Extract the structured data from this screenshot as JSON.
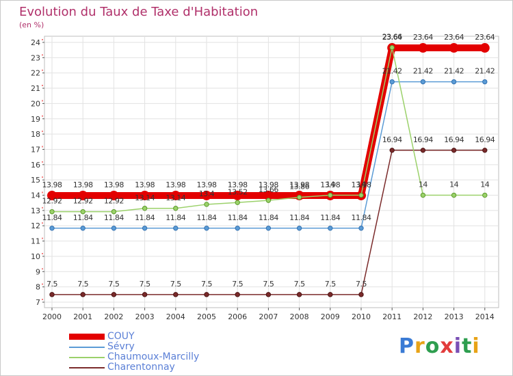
{
  "title": "Evolution du Taux de Taxe d'Habitation",
  "subtitle": "(en %)",
  "logo": {
    "text": "Proxiti",
    "colors": [
      "#3a7bd5",
      "#e8a317",
      "#2e9e4f",
      "#e23c3c",
      "#7a4fb5",
      "#2e9e4f",
      "#e8a317"
    ]
  },
  "chart_data": {
    "type": "line",
    "title": "Evolution du Taux de Taxe d'Habitation",
    "ylabel": "(en %)",
    "xlabel": "",
    "ylim": [
      7,
      24
    ],
    "yticks": [
      7,
      8,
      9,
      10,
      11,
      12,
      13,
      14,
      15,
      16,
      17,
      18,
      19,
      20,
      21,
      22,
      23,
      24
    ],
    "x": [
      "2000",
      "2001",
      "2002",
      "2003",
      "2004",
      "2005",
      "2006",
      "2007",
      "2008",
      "2009",
      "2010",
      "2011",
      "2012",
      "2013",
      "2014"
    ],
    "series": [
      {
        "name": "COUY",
        "color": "#e30000",
        "width": 10,
        "values": [
          13.98,
          13.98,
          13.98,
          13.98,
          13.98,
          13.98,
          13.98,
          13.98,
          13.98,
          13.98,
          13.98,
          23.64,
          23.64,
          23.64,
          23.64
        ],
        "labels": [
          "13.98",
          "13.98",
          "13.98",
          "13.98",
          "13.98",
          "13.98",
          "13.98",
          "13.98",
          "13.98",
          "13.98",
          "13.98",
          "23.64",
          "23.64",
          "23.64",
          "23.64"
        ]
      },
      {
        "name": "Sévry",
        "color": "#5b9bd5",
        "width": 1.5,
        "values": [
          11.84,
          11.84,
          11.84,
          11.84,
          11.84,
          11.84,
          11.84,
          11.84,
          11.84,
          11.84,
          11.84,
          21.42,
          21.42,
          21.42,
          21.42
        ],
        "labels": [
          "11.84",
          "11.84",
          "11.84",
          "11.84",
          "11.84",
          "11.84",
          "11.84",
          "11.84",
          "11.84",
          "11.84",
          "11.84",
          "21.42",
          "21.42",
          "21.42",
          "21.42"
        ]
      },
      {
        "name": "Chaumoux-Marcilly",
        "color": "#9bd16a",
        "width": 1.5,
        "values": [
          12.92,
          12.92,
          12.92,
          13.14,
          13.14,
          13.4,
          13.52,
          13.66,
          13.86,
          14,
          14,
          23.66,
          14,
          14,
          14
        ],
        "labels": [
          "12.92",
          "12.92",
          "12.92",
          "13.14",
          "13.14",
          "13.4",
          "13.52",
          "13.66",
          "13.86",
          "14",
          "14",
          "23.66",
          "14",
          "14",
          "14"
        ]
      },
      {
        "name": "Charentonnay",
        "color": "#7a2a2a",
        "width": 1.5,
        "values": [
          7.5,
          7.5,
          7.5,
          7.5,
          7.5,
          7.5,
          7.5,
          7.5,
          7.5,
          7.5,
          7.5,
          16.94,
          16.94,
          16.94,
          16.94
        ],
        "labels": [
          "7.5",
          "7.5",
          "7.5",
          "7.5",
          "7.5",
          "7.5",
          "7.5",
          "7.5",
          "7.5",
          "7.5",
          "7.5",
          "16.94",
          "16.94",
          "16.94",
          "16.94"
        ]
      }
    ]
  }
}
